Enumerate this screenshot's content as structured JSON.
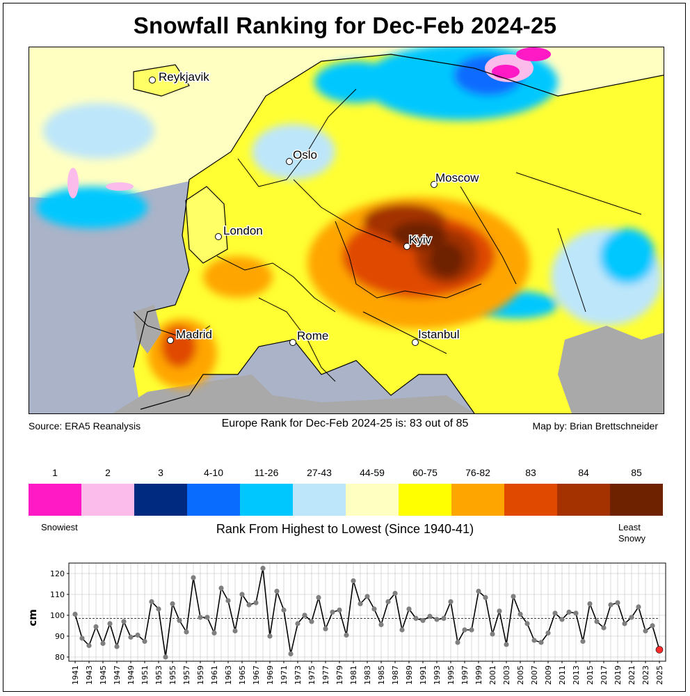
{
  "title": "Snowfall Ranking for Dec-Feb 2024-25",
  "map": {
    "cities": [
      {
        "name": "Reykjavik"
      },
      {
        "name": "Oslo"
      },
      {
        "name": "Moscow"
      },
      {
        "name": "London"
      },
      {
        "name": "Kyiv"
      },
      {
        "name": "Madrid"
      },
      {
        "name": "Rome"
      },
      {
        "name": "Istanbul"
      }
    ],
    "land_no_data_color": "#a9a9a9",
    "sea_color": "#aab3c8"
  },
  "footer": {
    "source": "Source: ERA5 Reanalysis",
    "rank_text": "Europe Rank for Dec-Feb 2024-25 is: 83 out of 85",
    "credit": "Map by: Brian Brettschneider"
  },
  "legend": {
    "items": [
      {
        "label": "1",
        "color": "#ff1ac6"
      },
      {
        "label": "2",
        "color": "#fbbcec"
      },
      {
        "label": "3",
        "color": "#002a80"
      },
      {
        "label": "4-10",
        "color": "#0a6cff"
      },
      {
        "label": "11-26",
        "color": "#00c8ff"
      },
      {
        "label": "27-43",
        "color": "#bde6fa"
      },
      {
        "label": "44-59",
        "color": "#ffffc2"
      },
      {
        "label": "60-75",
        "color": "#ffff00"
      },
      {
        "label": "76-82",
        "color": "#ffa500"
      },
      {
        "label": "83",
        "color": "#e04a00"
      },
      {
        "label": "84",
        "color": "#a33200"
      },
      {
        "label": "85",
        "color": "#6e2200"
      }
    ],
    "left_label": "Snowiest",
    "right_label_line1": "Least",
    "right_label_line2": "Snowy",
    "title": "Rank From Highest to Lowest (Since 1940-41)"
  },
  "chart_data": {
    "type": "line",
    "ylabel": "cm",
    "xlabel": "",
    "ylim": [
      78,
      125
    ],
    "yticks": [
      80,
      90,
      100,
      110,
      120
    ],
    "xtick_labels": [
      "1941",
      "1943",
      "1945",
      "1947",
      "1949",
      "1951",
      "1953",
      "1955",
      "1957",
      "1959",
      "1961",
      "1963",
      "1965",
      "1967",
      "1969",
      "1971",
      "1973",
      "1975",
      "1977",
      "1979",
      "1981",
      "1983",
      "1985",
      "1987",
      "1989",
      "1991",
      "1993",
      "1995",
      "1997",
      "1999",
      "2001",
      "2003",
      "2005",
      "2007",
      "2009",
      "2011",
      "2013",
      "2015",
      "2017",
      "2019",
      "2021",
      "2023",
      "2025"
    ],
    "grid": true,
    "mean_line": 98.5,
    "highlight": {
      "x": 2025,
      "y": 83.5,
      "color": "#ff2a2a"
    },
    "series": [
      {
        "x": [
          1941,
          1942,
          1943,
          1944,
          1945,
          1946,
          1947,
          1948,
          1949,
          1950,
          1951,
          1952,
          1953,
          1954,
          1955,
          1956,
          1957,
          1958,
          1959,
          1960,
          1961,
          1962,
          1963,
          1964,
          1965,
          1966,
          1967,
          1968,
          1969,
          1970,
          1971,
          1972,
          1973,
          1974,
          1975,
          1976,
          1977,
          1978,
          1979,
          1980,
          1981,
          1982,
          1983,
          1984,
          1985,
          1986,
          1987,
          1988,
          1989,
          1990,
          1991,
          1992,
          1993,
          1994,
          1995,
          1996,
          1997,
          1998,
          1999,
          2000,
          2001,
          2002,
          2003,
          2004,
          2005,
          2006,
          2007,
          2008,
          2009,
          2010,
          2011,
          2012,
          2013,
          2014,
          2015,
          2016,
          2017,
          2018,
          2019,
          2020,
          2021,
          2022,
          2023,
          2024,
          2025
        ],
        "values": [
          100.5,
          89,
          85.5,
          94.5,
          86.5,
          96,
          85,
          97,
          89.5,
          90.5,
          87.5,
          106.5,
          103,
          80,
          105.5,
          97.5,
          92,
          118,
          99,
          99,
          91.5,
          113,
          107,
          92.5,
          110,
          105,
          106,
          122.5,
          90,
          111.5,
          102.5,
          81.5,
          96,
          100,
          97,
          108.5,
          93.5,
          101.5,
          102.5,
          90.5,
          116.5,
          105.5,
          109,
          103,
          95.5,
          106.5,
          110.5,
          93,
          103,
          98.5,
          97.5,
          99.5,
          98,
          98.5,
          106.5,
          87,
          93,
          93,
          111.5,
          108.5,
          91,
          102,
          86,
          109,
          100.5,
          96,
          88,
          87,
          91.5,
          101,
          98,
          101.5,
          101,
          87.5,
          105.5,
          97,
          94,
          105,
          106,
          96,
          99,
          104,
          92.5,
          95,
          83.5
        ]
      }
    ]
  }
}
